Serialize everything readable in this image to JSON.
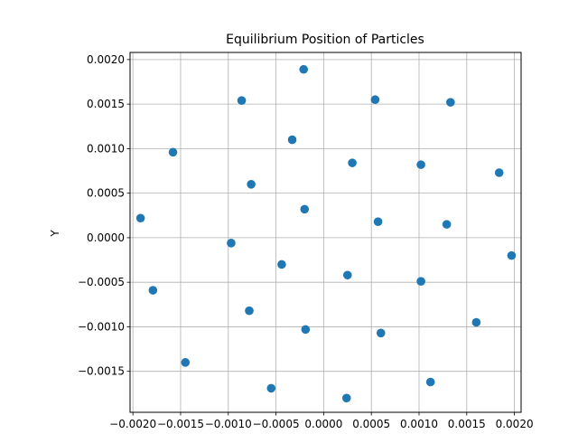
{
  "chart_data": {
    "type": "scatter",
    "title": "Equilibrium Position of Particles",
    "xlabel": "",
    "ylabel": "Y",
    "grid": true,
    "marker_color": "#1f77b4",
    "xlim": [
      -0.00203,
      0.00207
    ],
    "ylim": [
      -0.00196,
      0.00208
    ],
    "x_ticks": [
      {
        "value": -0.002,
        "label": "−0.0020"
      },
      {
        "value": -0.0015,
        "label": "−0.0015"
      },
      {
        "value": -0.001,
        "label": "−0.0010"
      },
      {
        "value": -0.0005,
        "label": "−0.0005"
      },
      {
        "value": 0.0,
        "label": "0.0000"
      },
      {
        "value": 0.0005,
        "label": "0.0005"
      },
      {
        "value": 0.001,
        "label": "0.0010"
      },
      {
        "value": 0.0015,
        "label": "0.0015"
      },
      {
        "value": 0.002,
        "label": "0.0020"
      }
    ],
    "y_ticks": [
      {
        "value": -0.0015,
        "label": "−0.0015"
      },
      {
        "value": -0.001,
        "label": "−0.0010"
      },
      {
        "value": -0.0005,
        "label": "−0.0005"
      },
      {
        "value": 0.0,
        "label": "0.0000"
      },
      {
        "value": 0.0005,
        "label": "0.0005"
      },
      {
        "value": 0.001,
        "label": "0.0010"
      },
      {
        "value": 0.0015,
        "label": "0.0015"
      },
      {
        "value": 0.002,
        "label": "0.0020"
      }
    ],
    "points": [
      {
        "x": -0.00021,
        "y": 0.00189
      },
      {
        "x": -0.00086,
        "y": 0.00154
      },
      {
        "x": 0.00054,
        "y": 0.00155
      },
      {
        "x": 0.00133,
        "y": 0.00152
      },
      {
        "x": -0.00033,
        "y": 0.0011
      },
      {
        "x": -0.00158,
        "y": 0.00096
      },
      {
        "x": 0.0003,
        "y": 0.00084
      },
      {
        "x": 0.00102,
        "y": 0.00082
      },
      {
        "x": 0.00184,
        "y": 0.00073
      },
      {
        "x": -0.00076,
        "y": 0.0006
      },
      {
        "x": -0.0002,
        "y": 0.00032
      },
      {
        "x": -0.00192,
        "y": 0.00022
      },
      {
        "x": 0.00057,
        "y": 0.00018
      },
      {
        "x": 0.00129,
        "y": 0.00015
      },
      {
        "x": -0.00097,
        "y": -6e-05
      },
      {
        "x": 0.00197,
        "y": -0.0002
      },
      {
        "x": -0.00044,
        "y": -0.0003
      },
      {
        "x": 0.00025,
        "y": -0.00042
      },
      {
        "x": 0.00102,
        "y": -0.00049
      },
      {
        "x": -0.00179,
        "y": -0.00059
      },
      {
        "x": -0.00078,
        "y": -0.00082
      },
      {
        "x": 0.0016,
        "y": -0.00095
      },
      {
        "x": -0.00019,
        "y": -0.00103
      },
      {
        "x": 0.0006,
        "y": -0.00107
      },
      {
        "x": -0.00145,
        "y": -0.0014
      },
      {
        "x": 0.00112,
        "y": -0.00162
      },
      {
        "x": -0.00055,
        "y": -0.00169
      },
      {
        "x": 0.00024,
        "y": -0.0018
      }
    ]
  }
}
